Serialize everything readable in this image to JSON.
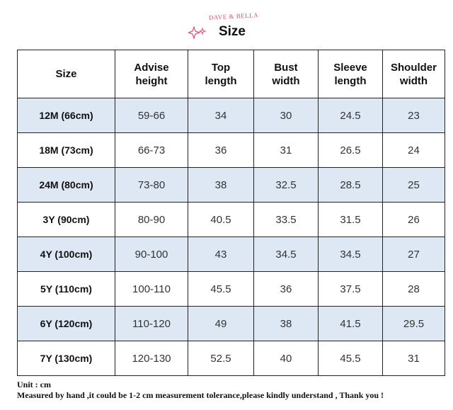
{
  "header": {
    "brand": "DAVE & BELLA",
    "title": "Size"
  },
  "table": {
    "columns": [
      "Size",
      "Advise\nheight",
      "Top\nlength",
      "Bust\nwidth",
      "Sleeve\nlength",
      "Shoulder\nwidth"
    ],
    "rows": [
      [
        "12M (66cm)",
        "59-66",
        34,
        30,
        24.5,
        23
      ],
      [
        "18M (73cm)",
        "66-73",
        36,
        31,
        26.5,
        24
      ],
      [
        "24M (80cm)",
        "73-80",
        38,
        32.5,
        28.5,
        25
      ],
      [
        "3Y (90cm)",
        "80-90",
        40.5,
        33.5,
        31.5,
        26
      ],
      [
        "4Y (100cm)",
        "90-100",
        43,
        34.5,
        34.5,
        27
      ],
      [
        "5Y (110cm)",
        "100-110",
        45.5,
        36,
        37.5,
        28
      ],
      [
        "6Y (120cm)",
        "110-120",
        49,
        38,
        41.5,
        29.5
      ],
      [
        "7Y (130cm)",
        "120-130",
        52.5,
        40,
        45.5,
        31
      ]
    ]
  },
  "footer": {
    "unit": "Unit : cm",
    "note": "Measured by hand ,it could be 1-2 cm measurement tolerance,please kindly understand , Thank you !"
  }
}
